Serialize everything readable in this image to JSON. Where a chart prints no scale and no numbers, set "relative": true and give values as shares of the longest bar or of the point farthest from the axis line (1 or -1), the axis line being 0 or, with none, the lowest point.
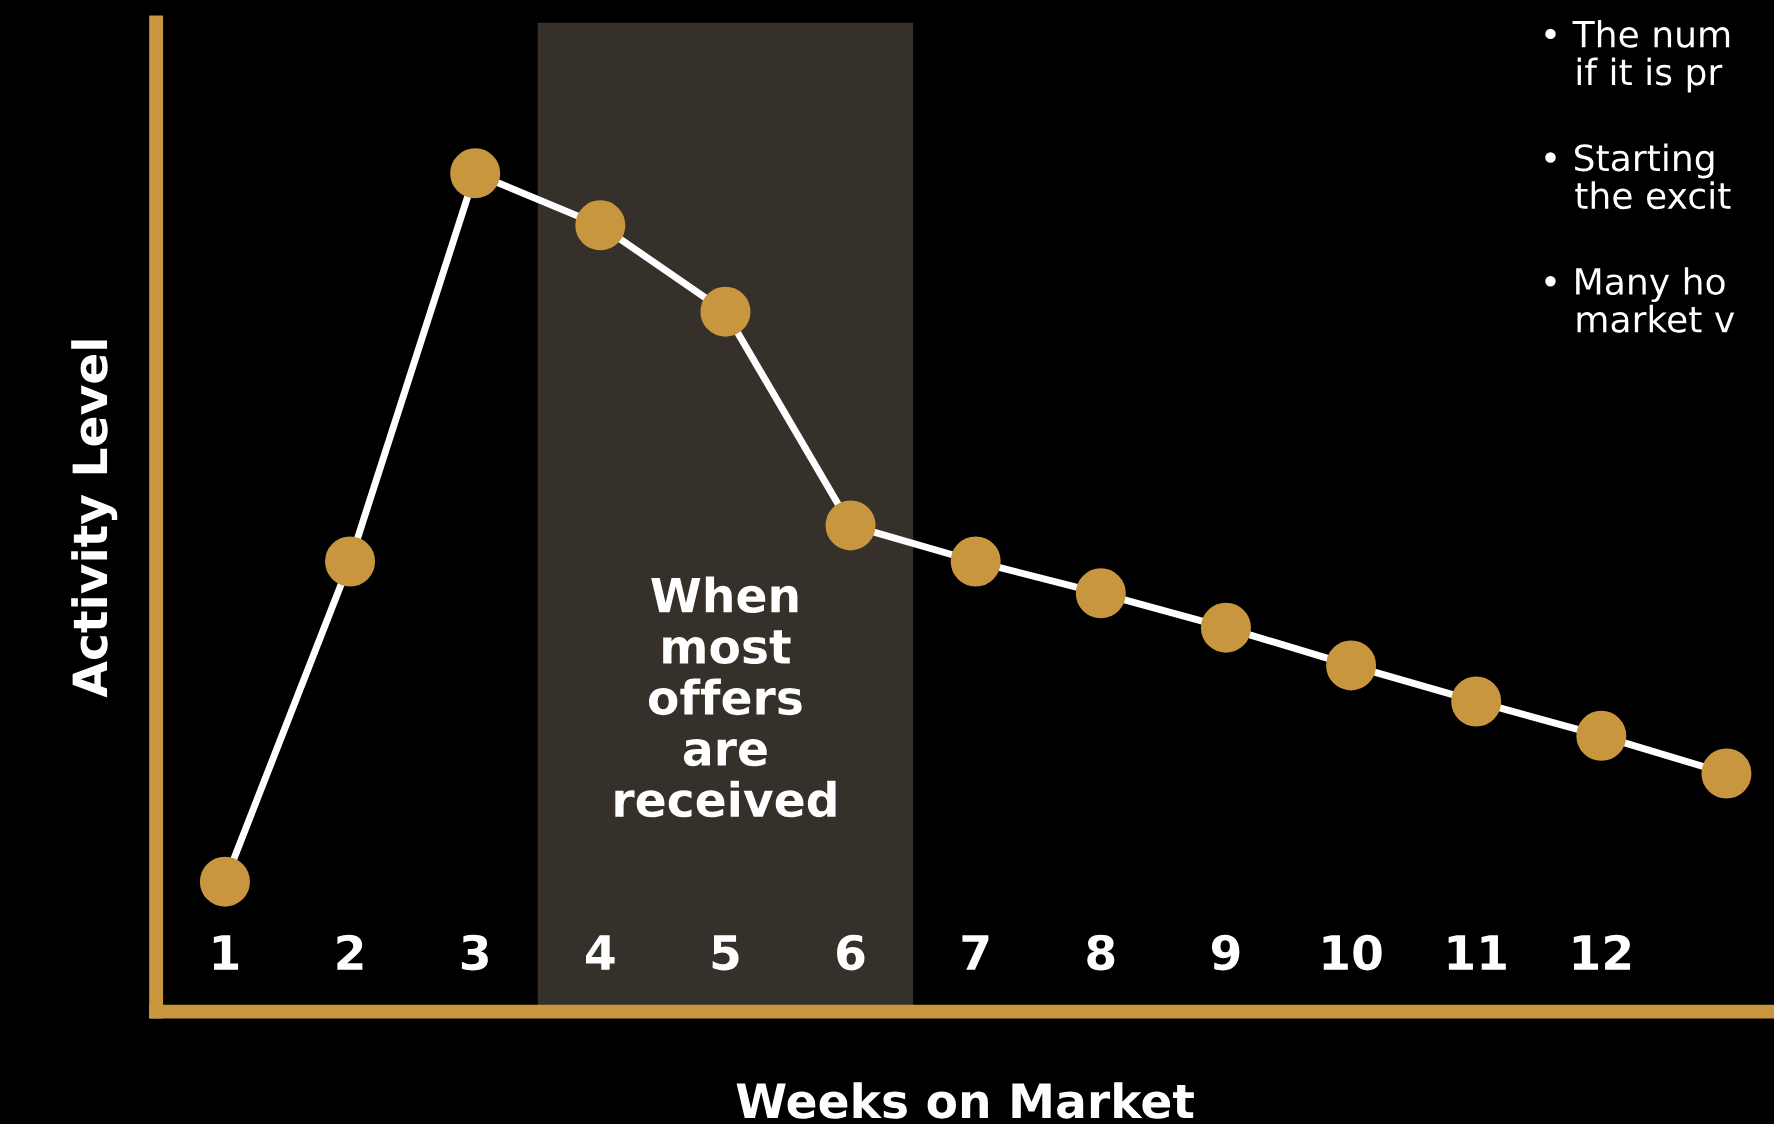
{
  "chart_data": {
    "type": "line",
    "relative": true,
    "xlabel": "Weeks on Market",
    "ylabel": "Activity Level",
    "categories": [
      "1",
      "2",
      "3",
      "4",
      "5",
      "6",
      "7",
      "8",
      "9",
      "10",
      "11",
      "12",
      null
    ],
    "series": [
      {
        "color": "#c8963e",
        "values": [
          0.155,
          0.537,
          1,
          0.938,
          0.835,
          0.58,
          0.537,
          0.499,
          0.458,
          0.413,
          0.37,
          0.329,
          0.284
        ]
      }
    ],
    "marker": "circle",
    "line_style": "solid",
    "bands": [
      {
        "axis": "x",
        "from": "4",
        "to": "6",
        "label": "When\nmost\noffers\nare\nreceived",
        "color": "#36302a"
      }
    ],
    "annotations": [
      "• The num\n   if it is pr",
      "• Starting\n   the excit",
      "• Many ho\n   market v"
    ]
  }
}
